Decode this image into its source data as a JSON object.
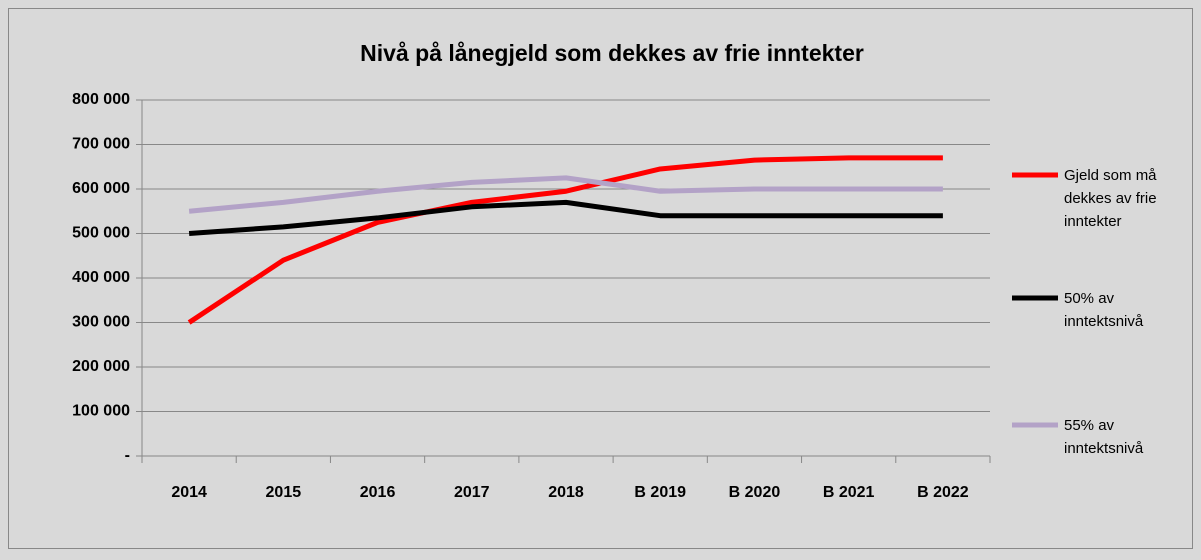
{
  "chart_data": {
    "type": "line",
    "title": "Nivå på lånegjeld som dekkes av frie inntekter",
    "categories": [
      "2014",
      "2015",
      "2016",
      "2017",
      "2018",
      "B 2019",
      "B 2020",
      "B 2021",
      "B 2022"
    ],
    "series": [
      {
        "name": "Gjeld som må dekkes av frie inntekter",
        "color": "#ff0000",
        "values": [
          300000,
          440000,
          525000,
          570000,
          595000,
          645000,
          665000,
          670000,
          670000
        ]
      },
      {
        "name": "50% av inntektsnivå",
        "color": "#000000",
        "values": [
          500000,
          515000,
          535000,
          560000,
          570000,
          540000,
          540000,
          540000,
          540000
        ]
      },
      {
        "name": "55% av inntektsnivå",
        "color": "#b3a2c7",
        "values": [
          550000,
          570000,
          595000,
          615000,
          625000,
          595000,
          600000,
          600000,
          600000
        ]
      }
    ],
    "ylim": [
      0,
      800000
    ],
    "yticks": [
      {
        "value": 0,
        "label": "-"
      },
      {
        "value": 100000,
        "label": "100 000"
      },
      {
        "value": 200000,
        "label": "200 000"
      },
      {
        "value": 300000,
        "label": "300 000"
      },
      {
        "value": 400000,
        "label": "400 000"
      },
      {
        "value": 500000,
        "label": "500 000"
      },
      {
        "value": 600000,
        "label": "600 000"
      },
      {
        "value": 700000,
        "label": "700 000"
      },
      {
        "value": 800000,
        "label": "800 000"
      }
    ],
    "grid": true,
    "legend": "right"
  }
}
